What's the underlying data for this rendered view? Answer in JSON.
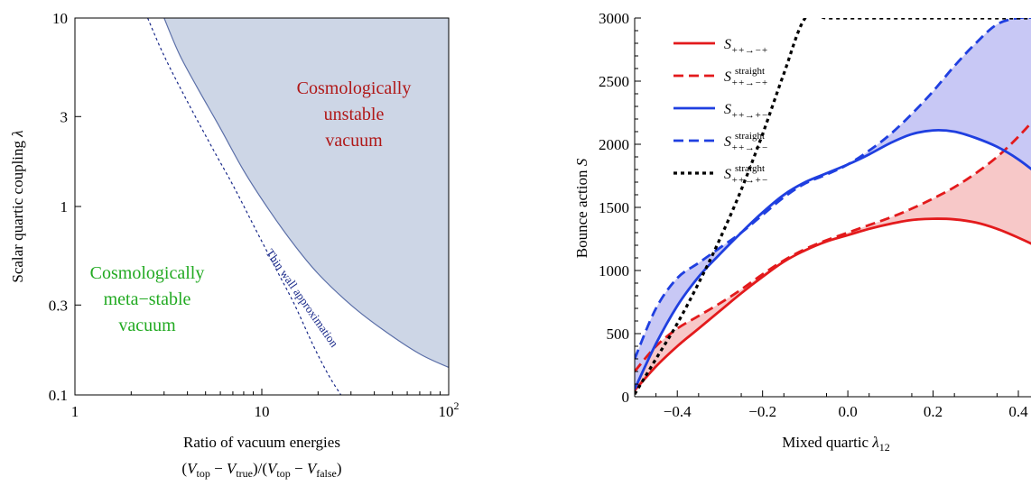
{
  "chart_data": [
    {
      "type": "area",
      "panel": "left",
      "xlabel": "Ratio of vacuum energies",
      "xlabel_formula": {
        "open": "(",
        "v1": "V",
        "s1": "top",
        "minus1": " − ",
        "v2": "V",
        "s2": "true",
        "mid": ")/(",
        "v3": "V",
        "s3": "top",
        "minus2": " − ",
        "v4": "V",
        "s4": "false",
        "close": ")"
      },
      "ylabel": "Scalar quartic coupling",
      "ylabel_symbol": "λ",
      "x_scale": "log",
      "y_scale": "log",
      "xlim": [
        1,
        100
      ],
      "ylim": [
        0.1,
        10
      ],
      "x_ticks": [
        {
          "value": 1,
          "label": "1"
        },
        {
          "value": 10,
          "label": "10"
        },
        {
          "value": 100,
          "label": "10",
          "sup": "2"
        }
      ],
      "y_ticks": [
        {
          "value": 0.1,
          "label": "0.1"
        },
        {
          "value": 0.3,
          "label": "0.3"
        },
        {
          "value": 1,
          "label": "1"
        },
        {
          "value": 3,
          "label": "3"
        },
        {
          "value": 10,
          "label": "10"
        }
      ],
      "unstable_boundary": [
        {
          "x": 3.0,
          "y": 10
        },
        {
          "x": 3.6,
          "y": 6.5
        },
        {
          "x": 4.5,
          "y": 4.3
        },
        {
          "x": 6,
          "y": 2.6
        },
        {
          "x": 8,
          "y": 1.55
        },
        {
          "x": 11,
          "y": 0.95
        },
        {
          "x": 15,
          "y": 0.62
        },
        {
          "x": 20,
          "y": 0.44
        },
        {
          "x": 30,
          "y": 0.3
        },
        {
          "x": 45,
          "y": 0.22
        },
        {
          "x": 70,
          "y": 0.165
        },
        {
          "x": 100,
          "y": 0.14
        }
      ],
      "thin_wall_curve": [
        {
          "x": 2.45,
          "y": 10
        },
        {
          "x": 3,
          "y": 6.3
        },
        {
          "x": 4,
          "y": 3.6
        },
        {
          "x": 5.5,
          "y": 2.0
        },
        {
          "x": 7,
          "y": 1.3
        },
        {
          "x": 9,
          "y": 0.8
        },
        {
          "x": 12,
          "y": 0.46
        },
        {
          "x": 15,
          "y": 0.3
        },
        {
          "x": 19,
          "y": 0.18
        },
        {
          "x": 23,
          "y": 0.125
        },
        {
          "x": 26.5,
          "y": 0.1
        }
      ],
      "annotations": {
        "unstable": [
          "Cosmologically",
          "unstable",
          "vacuum"
        ],
        "metastable": [
          "Cosmologically",
          "meta−stable",
          "vacuum"
        ],
        "thin_wall": "Thin wall approximation"
      },
      "colors": {
        "fill": "#cdd6e6",
        "boundary": "#5b6fa8",
        "thin_wall": "#1a2a8a",
        "unstable_text": "#b01818",
        "metastable_text": "#22aa22"
      }
    },
    {
      "type": "line",
      "panel": "right",
      "xlabel": "Mixed quartic",
      "xlabel_symbol": "λ",
      "xlabel_sub": "12",
      "ylabel": "Bounce action",
      "ylabel_symbol": "S",
      "xlim": [
        -0.5,
        0.5
      ],
      "ylim": [
        0,
        3000
      ],
      "x_ticks": [
        {
          "value": -0.4,
          "label": "−0.4"
        },
        {
          "value": -0.2,
          "label": "−0.2"
        },
        {
          "value": 0.0,
          "label": "0.0"
        },
        {
          "value": 0.2,
          "label": "0.2"
        },
        {
          "value": 0.4,
          "label": "0.4"
        }
      ],
      "y_ticks": [
        0,
        500,
        1000,
        1500,
        2000,
        2500,
        3000
      ],
      "x": [
        -0.5,
        -0.45,
        -0.4,
        -0.35,
        -0.3,
        -0.25,
        -0.2,
        -0.15,
        -0.1,
        -0.05,
        0.0,
        0.05,
        0.1,
        0.15,
        0.2,
        0.25,
        0.3,
        0.35,
        0.4,
        0.45,
        0.5
      ],
      "series": [
        {
          "legend": {
            "base": "S",
            "sub": "++→−+",
            "sup": ""
          },
          "color": "#e31a1c",
          "dash": "solid",
          "values": [
            50,
            240,
            400,
            540,
            680,
            820,
            950,
            1070,
            1160,
            1230,
            1280,
            1330,
            1370,
            1400,
            1410,
            1405,
            1380,
            1330,
            1260,
            1180,
            1090
          ]
        },
        {
          "legend": {
            "base": "S",
            "sub": "++→−+",
            "sup": "straight"
          },
          "color": "#e31a1c",
          "dash": "dashed",
          "values": [
            200,
            400,
            540,
            640,
            740,
            850,
            970,
            1080,
            1170,
            1240,
            1300,
            1360,
            1420,
            1490,
            1570,
            1660,
            1770,
            1900,
            2060,
            2250,
            2470
          ]
        },
        {
          "legend": {
            "base": "S",
            "sub": "++→+−",
            "sup": ""
          },
          "color": "#1f3fe0",
          "dash": "solid",
          "values": [
            60,
            420,
            720,
            950,
            1130,
            1300,
            1460,
            1600,
            1700,
            1770,
            1840,
            1920,
            2010,
            2080,
            2110,
            2100,
            2050,
            1980,
            1880,
            1750,
            1600
          ]
        },
        {
          "legend": {
            "base": "S",
            "sub": "++→+−",
            "sup": "straight"
          },
          "color": "#1f3fe0",
          "dash": "dashed",
          "values": [
            300,
            700,
            940,
            1060,
            1180,
            1300,
            1440,
            1580,
            1690,
            1760,
            1840,
            1950,
            2080,
            2240,
            2420,
            2620,
            2800,
            2950,
            3000,
            3000,
            3000
          ]
        },
        {
          "legend": {
            "base": "S",
            "sub": "++→+−",
            "sup": "straight"
          },
          "color": "#000000",
          "dash": "dotted",
          "values": [
            20,
            300,
            580,
            900,
            1250,
            1640,
            2080,
            2560,
            3000,
            3000,
            3000,
            3000,
            3000,
            3000,
            3000,
            3000,
            3000,
            3000,
            3000,
            3000,
            3000
          ]
        }
      ],
      "shaded_regions": [
        {
          "between": [
            0,
            1
          ],
          "color": "#f7c8c8"
        },
        {
          "between": [
            2,
            3
          ],
          "color": "#c8c8f5"
        }
      ]
    }
  ]
}
